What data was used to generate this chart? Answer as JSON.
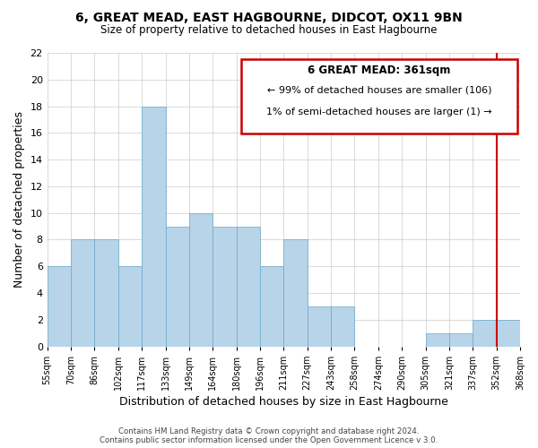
{
  "title": "6, GREAT MEAD, EAST HAGBOURNE, DIDCOT, OX11 9BN",
  "subtitle": "Size of property relative to detached houses in East Hagbourne",
  "xlabel": "Distribution of detached houses by size in East Hagbourne",
  "ylabel": "Number of detached properties",
  "bar_color": "#b8d4e8",
  "bar_edge_color": "#6aa8cc",
  "highlight_color": "#cc0000",
  "tick_labels": [
    "55sqm",
    "70sqm",
    "86sqm",
    "102sqm",
    "117sqm",
    "133sqm",
    "149sqm",
    "164sqm",
    "180sqm",
    "196sqm",
    "211sqm",
    "227sqm",
    "243sqm",
    "258sqm",
    "274sqm",
    "290sqm",
    "305sqm",
    "321sqm",
    "337sqm",
    "352sqm",
    "368sqm"
  ],
  "values": [
    6,
    8,
    8,
    6,
    18,
    9,
    10,
    9,
    9,
    6,
    8,
    3,
    3,
    0,
    0,
    0,
    1,
    1,
    2,
    2
  ],
  "ylim": [
    0,
    22
  ],
  "yticks": [
    0,
    2,
    4,
    6,
    8,
    10,
    12,
    14,
    16,
    18,
    20,
    22
  ],
  "annotation_title": "6 GREAT MEAD: 361sqm",
  "annotation_line1": "← 99% of detached houses are smaller (106)",
  "annotation_line2": "1% of semi-detached houses are larger (1) →",
  "vline_position": 19,
  "footer1": "Contains HM Land Registry data © Crown copyright and database right 2024.",
  "footer2": "Contains public sector information licensed under the Open Government Licence v 3.0.",
  "background_color": "#ffffff",
  "grid_color": "#cccccc"
}
